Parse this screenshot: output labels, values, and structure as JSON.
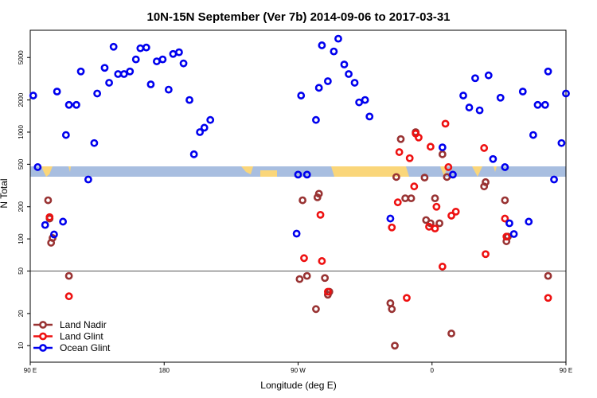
{
  "chart_data": {
    "type": "scatter",
    "title": "10N-15N September (Ver 7b)   2014-09-06 to 2017-03-31",
    "xlabel": "Longitude (deg E)",
    "ylabel": "N Total",
    "xlim": [
      90,
      450
    ],
    "ylim": [
      7,
      9000
    ],
    "y_scale": "log",
    "x_ticks": [
      {
        "value": 90,
        "label": "90 E"
      },
      {
        "value": 180,
        "label": "180"
      },
      {
        "value": 270,
        "label": "90 W"
      },
      {
        "value": 360,
        "label": "0"
      },
      {
        "value": 450,
        "label": "90 E"
      }
    ],
    "y_ticks": [
      {
        "value": 10,
        "label": "10"
      },
      {
        "value": 20,
        "label": "20"
      },
      {
        "value": 50,
        "label": "50"
      },
      {
        "value": 100,
        "label": "100"
      },
      {
        "value": 200,
        "label": "200"
      },
      {
        "value": 500,
        "label": "500"
      },
      {
        "value": 1000,
        "label": "1000"
      },
      {
        "value": 2000,
        "label": "2000"
      },
      {
        "value": 5000,
        "label": "5000"
      }
    ],
    "reference_line": 50,
    "band_color": "#a8bee0",
    "land_color": "#fad67a",
    "legend_position": "bottom-left",
    "series": [
      {
        "name": "Land Nadir",
        "color": "#993333",
        "points": [
          [
            102,
            230
          ],
          [
            103,
            155
          ],
          [
            104,
            92
          ],
          [
            105,
            102
          ],
          [
            116,
            45
          ],
          [
            271,
            42
          ],
          [
            273,
            230
          ],
          [
            276,
            45
          ],
          [
            282,
            22
          ],
          [
            283,
            245
          ],
          [
            284,
            265
          ],
          [
            288,
            43
          ],
          [
            290,
            30
          ],
          [
            291,
            32
          ],
          [
            332,
            25
          ],
          [
            333,
            22
          ],
          [
            335,
            10
          ],
          [
            336,
            380
          ],
          [
            339,
            860
          ],
          [
            342,
            240
          ],
          [
            346,
            240
          ],
          [
            349,
            1000
          ],
          [
            355,
            375
          ],
          [
            356,
            150
          ],
          [
            359,
            140
          ],
          [
            362,
            240
          ],
          [
            365,
            140
          ],
          [
            367,
            620
          ],
          [
            373,
            13
          ],
          [
            370,
            380
          ],
          [
            395,
            310
          ],
          [
            396,
            340
          ],
          [
            409,
            230
          ],
          [
            410,
            95
          ],
          [
            411,
            105
          ],
          [
            438,
            45
          ]
        ]
      },
      {
        "name": "Land Glint",
        "color": "#ee1111",
        "points": [
          [
            103,
            160
          ],
          [
            116,
            29
          ],
          [
            274,
            66
          ],
          [
            285,
            168
          ],
          [
            286,
            62
          ],
          [
            290,
            32
          ],
          [
            333,
            128
          ],
          [
            337,
            220
          ],
          [
            338,
            650
          ],
          [
            343,
            28
          ],
          [
            345,
            570
          ],
          [
            348,
            310
          ],
          [
            349,
            970
          ],
          [
            351,
            890
          ],
          [
            358,
            130
          ],
          [
            359,
            730
          ],
          [
            362,
            125
          ],
          [
            363,
            200
          ],
          [
            367,
            55
          ],
          [
            369,
            1200
          ],
          [
            371,
            470
          ],
          [
            373,
            165
          ],
          [
            376,
            180
          ],
          [
            395,
            710
          ],
          [
            396,
            72
          ],
          [
            409,
            155
          ],
          [
            410,
            105
          ],
          [
            438,
            28
          ]
        ]
      },
      {
        "name": "Ocean Glint",
        "color": "#0000ee",
        "points": [
          [
            92,
            2200
          ],
          [
            95,
            470
          ],
          [
            100,
            135
          ],
          [
            106,
            110
          ],
          [
            108,
            2400
          ],
          [
            112,
            145
          ],
          [
            114,
            940
          ],
          [
            116,
            1800
          ],
          [
            121,
            1800
          ],
          [
            124,
            3700
          ],
          [
            129,
            360
          ],
          [
            133,
            790
          ],
          [
            135,
            2300
          ],
          [
            140,
            4000
          ],
          [
            143,
            2900
          ],
          [
            146,
            6300
          ],
          [
            149,
            3500
          ],
          [
            153,
            3500
          ],
          [
            157,
            3700
          ],
          [
            161,
            4800
          ],
          [
            164,
            6100
          ],
          [
            168,
            6200
          ],
          [
            171,
            2800
          ],
          [
            175,
            4600
          ],
          [
            179,
            4800
          ],
          [
            183,
            2500
          ],
          [
            186,
            5400
          ],
          [
            190,
            5600
          ],
          [
            193,
            4400
          ],
          [
            197,
            2000
          ],
          [
            200,
            620
          ],
          [
            204,
            1000
          ],
          [
            207,
            1100
          ],
          [
            211,
            1300
          ],
          [
            269,
            112
          ],
          [
            270,
            400
          ],
          [
            272,
            2200
          ],
          [
            276,
            400
          ],
          [
            282,
            1300
          ],
          [
            284,
            2600
          ],
          [
            286,
            6500
          ],
          [
            290,
            3000
          ],
          [
            294,
            5700
          ],
          [
            297,
            7500
          ],
          [
            301,
            4300
          ],
          [
            304,
            3500
          ],
          [
            308,
            2900
          ],
          [
            311,
            1900
          ],
          [
            315,
            2000
          ],
          [
            318,
            1400
          ],
          [
            332,
            155
          ],
          [
            367,
            720
          ],
          [
            374,
            400
          ],
          [
            381,
            2200
          ],
          [
            385,
            1700
          ],
          [
            389,
            3200
          ],
          [
            392,
            1600
          ],
          [
            398,
            3400
          ],
          [
            401,
            560
          ],
          [
            406,
            2100
          ],
          [
            409,
            470
          ],
          [
            412,
            140
          ],
          [
            415,
            111
          ],
          [
            421,
            2400
          ],
          [
            425,
            145
          ],
          [
            428,
            940
          ],
          [
            431,
            1800
          ],
          [
            436,
            1800
          ],
          [
            438,
            3700
          ],
          [
            442,
            360
          ],
          [
            447,
            790
          ],
          [
            450,
            2300
          ]
        ]
      }
    ]
  }
}
